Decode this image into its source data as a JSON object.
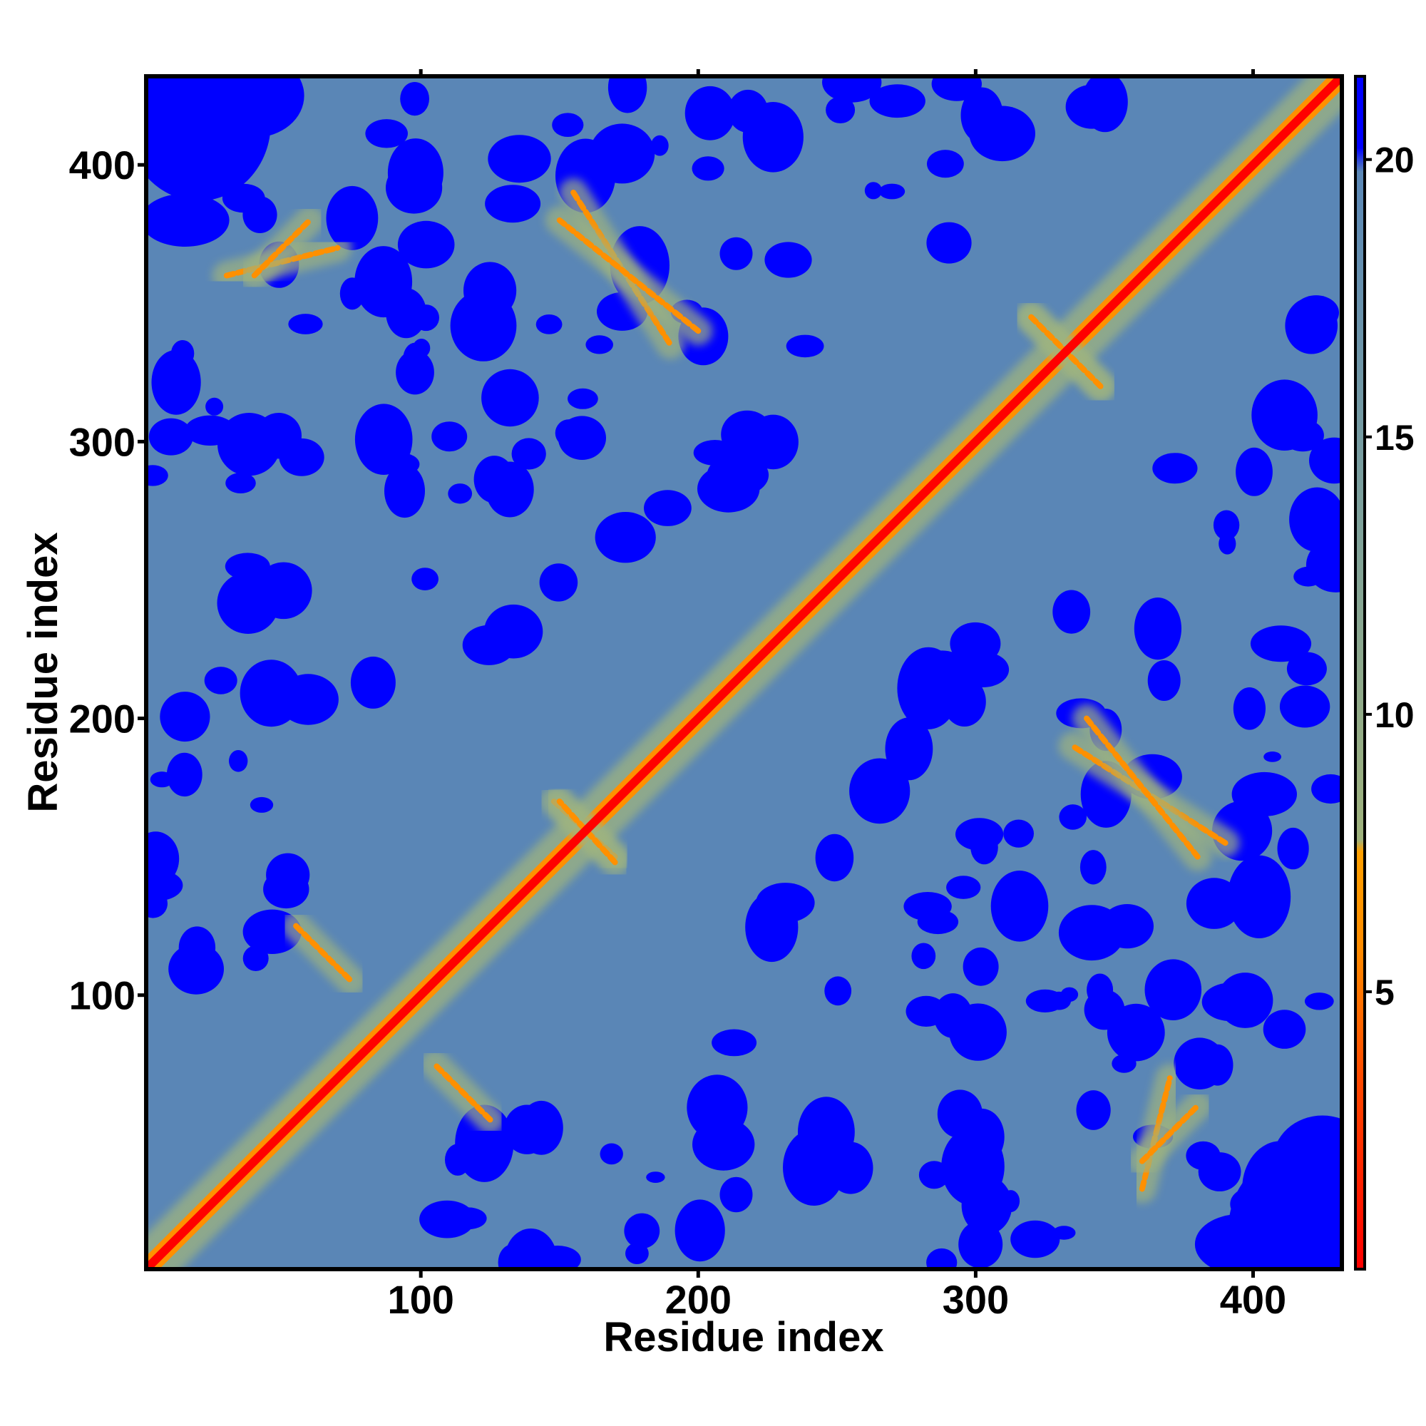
{
  "chart_data": {
    "type": "heatmap",
    "title": "",
    "xlabel": "Residue index",
    "ylabel": "Residue index",
    "x_range": [
      1,
      432
    ],
    "y_range": [
      1,
      432
    ],
    "x_ticks": [
      100,
      200,
      300,
      400
    ],
    "y_ticks": [
      100,
      200,
      300,
      400
    ],
    "x_tick_labels": [
      "100",
      "200",
      "300",
      "400"
    ],
    "y_tick_labels": [
      "100",
      "200",
      "300",
      "400"
    ],
    "colorbar": {
      "range": [
        0,
        21.5
      ],
      "ticks": [
        5,
        10,
        15,
        20
      ],
      "tick_labels": [
        "5",
        "10",
        "15",
        "20"
      ],
      "placement": "right",
      "colors": [
        {
          "stop": 0.0,
          "color": "#ff0000"
        },
        {
          "stop": 0.16,
          "color": "#ff4a00"
        },
        {
          "stop": 0.27,
          "color": "#ff8c00"
        },
        {
          "stop": 0.35,
          "color": "#ffa000"
        },
        {
          "stop": 0.36,
          "color": "#9fb27c"
        },
        {
          "stop": 0.62,
          "color": "#7fa29a"
        },
        {
          "stop": 0.92,
          "color": "#5b88b7"
        },
        {
          "stop": 0.94,
          "color": "#0000ff"
        },
        {
          "stop": 1.0,
          "color": "#0000ff"
        }
      ]
    },
    "colors": {
      "far": "#0000ff",
      "mid": "#5a86b6",
      "near": "#9fb47f",
      "close": "#ff9000",
      "contact": "#ff0000"
    },
    "grid": false,
    "features": [
      {
        "name": "diagonal",
        "description": "self distance band along residue i = j",
        "from": [
          1,
          1
        ],
        "to": [
          432,
          432
        ]
      },
      {
        "name": "hairpin",
        "from": [
          55,
          125
        ],
        "to": [
          75,
          105
        ]
      },
      {
        "name": "hairpin",
        "from": [
          148,
          170
        ],
        "to": [
          170,
          150
        ]
      },
      {
        "name": "hairpin",
        "from": [
          320,
          345
        ],
        "to": [
          345,
          320
        ]
      },
      {
        "name": "off-diagonal",
        "from": [
          30,
          360
        ],
        "to": [
          70,
          370
        ]
      },
      {
        "name": "off-diagonal",
        "from": [
          155,
          390
        ],
        "to": [
          190,
          335
        ]
      },
      {
        "name": "off-diagonal",
        "from": [
          340,
          200
        ],
        "to": [
          380,
          150
        ]
      },
      {
        "name": "off-diagonal",
        "from": [
          360,
          40
        ],
        "to": [
          380,
          60
        ]
      }
    ]
  }
}
